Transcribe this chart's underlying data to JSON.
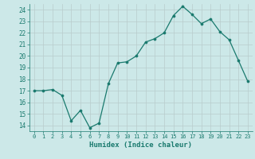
{
  "x": [
    0,
    1,
    2,
    3,
    4,
    5,
    6,
    7,
    8,
    9,
    10,
    11,
    12,
    13,
    14,
    15,
    16,
    17,
    18,
    19,
    20,
    21,
    22,
    23
  ],
  "y": [
    17,
    17,
    17.1,
    16.6,
    14.4,
    15.3,
    13.8,
    14.2,
    17.6,
    19.4,
    19.5,
    20.0,
    21.2,
    21.5,
    22.0,
    23.5,
    24.3,
    23.6,
    22.8,
    23.2,
    22.1,
    21.4,
    19.6,
    17.8
  ],
  "xlim": [
    -0.5,
    23.5
  ],
  "ylim": [
    13.5,
    24.5
  ],
  "yticks": [
    14,
    15,
    16,
    17,
    18,
    19,
    20,
    21,
    22,
    23,
    24
  ],
  "xticks": [
    0,
    1,
    2,
    3,
    4,
    5,
    6,
    7,
    8,
    9,
    10,
    11,
    12,
    13,
    14,
    15,
    16,
    17,
    18,
    19,
    20,
    21,
    22,
    23
  ],
  "xlabel": "Humidex (Indice chaleur)",
  "line_color": "#1a7a6e",
  "marker_color": "#1a7a6e",
  "bg_color": "#cce8e8",
  "grid_color_major": "#b8cccc",
  "grid_color_minor": "#dce8e8",
  "axis_color": "#1a7a6e",
  "tick_color": "#1a7a6e",
  "label_color": "#1a7a6e"
}
